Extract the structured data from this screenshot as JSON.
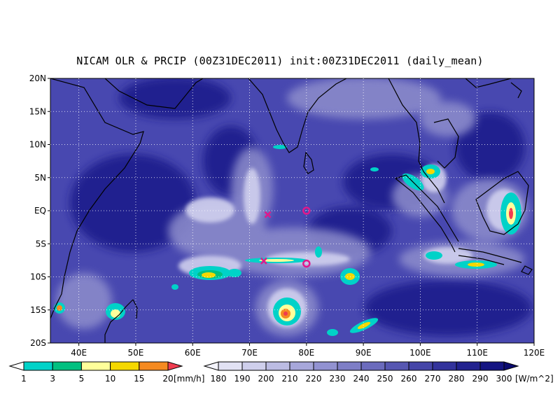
{
  "title": "NICAM OLR & PRCIP (00Z31DEC2011) init:00Z31DEC2011 (daily_mean)",
  "map": {
    "lon_range": [
      35,
      120
    ],
    "lat_range": [
      -20,
      20
    ],
    "lon_ticks": [
      "40E",
      "50E",
      "60E",
      "70E",
      "80E",
      "90E",
      "100E",
      "110E",
      "120E"
    ],
    "lat_ticks": [
      "20N",
      "15N",
      "10N",
      "5N",
      "EQ",
      "5S",
      "10S",
      "15S",
      "20S"
    ],
    "grid": "dotted"
  },
  "markers": [
    {
      "type": "x",
      "lon": 73.2,
      "lat": -0.6,
      "color": "#e0188c"
    },
    {
      "type": "x",
      "lon": 72.5,
      "lat": -7.6,
      "color": "#e0188c"
    },
    {
      "type": "o",
      "lon": 80,
      "lat": 0,
      "color": "#e0188c"
    },
    {
      "type": "o",
      "lon": 80,
      "lat": -8,
      "color": "#e0188c"
    }
  ],
  "precip_colorbar": {
    "labels": [
      "1",
      "3",
      "5",
      "10",
      "15",
      "20"
    ],
    "unit": "[mm/h]",
    "colors": [
      "#00d2c8",
      "#00c080",
      "#ffff9a",
      "#f5d800",
      "#f58a20",
      "#f03c50"
    ]
  },
  "olr_colorbar": {
    "labels": [
      "180",
      "190",
      "200",
      "210",
      "220",
      "230",
      "240",
      "250",
      "260",
      "270",
      "280",
      "290",
      "300"
    ],
    "unit": "[W/m^2]",
    "colors": [
      "#f4f4fc",
      "#e2e2f4",
      "#cfcfec",
      "#bcbce3",
      "#a7a7da",
      "#9292d1",
      "#7e7ec6",
      "#6b6bbd",
      "#5757b2",
      "#4545a8",
      "#33339c",
      "#22228f",
      "#141482",
      "#0a0a70"
    ]
  }
}
